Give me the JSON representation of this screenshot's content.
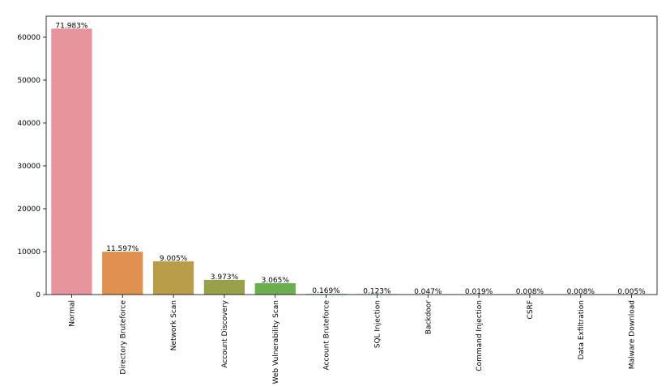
{
  "chart_data": {
    "type": "bar",
    "categories": [
      "Normal",
      "Directory Bruteforce",
      "Network Scan",
      "Account Discovery",
      "Web Vulnerability Scan",
      "Account Bruteforce",
      "SQL Injection",
      "Backdoor",
      "Command Injection",
      "CSRF",
      "Data Exfiltration",
      "Malware Download"
    ],
    "values": [
      62000,
      9989,
      7756,
      3422,
      2640,
      146,
      106,
      40,
      16,
      7,
      7,
      4
    ],
    "annotations": [
      "71.983%",
      "11.597%",
      "9.005%",
      "3.973%",
      "3.065%",
      "0.169%",
      "0.123%",
      "0.047%",
      "0.019%",
      "0.008%",
      "0.008%",
      "0.005%"
    ],
    "colors": [
      "#e8949f",
      "#e0914f",
      "#b89c48",
      "#98a04a",
      "#6aae4e",
      "#4eab86",
      "#4aa9a0",
      "#4ea5b5",
      "#5e9fd0",
      "#9a93d6",
      "#c484d0",
      "#d87fb0"
    ],
    "ylim": [
      0,
      64900
    ],
    "yticks": [
      0,
      10000,
      20000,
      30000,
      40000,
      50000,
      60000
    ]
  }
}
